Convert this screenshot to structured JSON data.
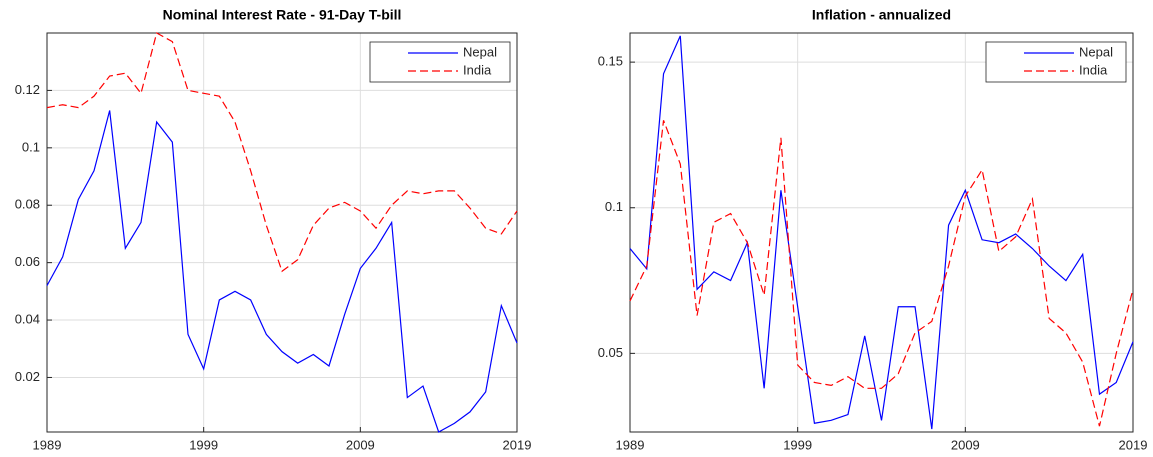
{
  "chart_data": [
    {
      "type": "line",
      "title": "Nominal Interest Rate - 91-Day T-bill",
      "x": [
        1989,
        1990,
        1991,
        1992,
        1993,
        1994,
        1995,
        1996,
        1997,
        1998,
        1999,
        2000,
        2001,
        2002,
        2003,
        2004,
        2005,
        2006,
        2007,
        2008,
        2009,
        2010,
        2011,
        2012,
        2013,
        2014,
        2015,
        2016,
        2017,
        2018,
        2019
      ],
      "series": [
        {
          "name": "Nepal",
          "color": "#0000ff",
          "line_style": "solid",
          "values": [
            0.052,
            0.062,
            0.082,
            0.092,
            0.113,
            0.065,
            0.074,
            0.109,
            0.102,
            0.035,
            0.023,
            0.047,
            0.05,
            0.047,
            0.035,
            0.029,
            0.025,
            0.028,
            0.024,
            0.042,
            0.058,
            0.065,
            0.074,
            0.013,
            0.017,
            0.001,
            0.004,
            0.008,
            0.015,
            0.045,
            0.032
          ]
        },
        {
          "name": "India",
          "color": "#ff0000",
          "line_style": "dashed",
          "values": [
            0.114,
            0.115,
            0.114,
            0.118,
            0.125,
            0.126,
            0.119,
            0.14,
            0.137,
            0.12,
            0.119,
            0.118,
            0.109,
            0.092,
            0.073,
            0.057,
            0.061,
            0.073,
            0.079,
            0.081,
            0.078,
            0.072,
            0.08,
            0.085,
            0.084,
            0.085,
            0.085,
            0.079,
            0.072,
            0.07,
            0.078
          ]
        }
      ],
      "xlim": [
        1989,
        2019
      ],
      "xticks": [
        1989,
        1999,
        2009,
        2019
      ],
      "ylim": [
        0.001,
        0.14
      ],
      "yticks": [
        0.02,
        0.04,
        0.06,
        0.08,
        0.1,
        0.12
      ],
      "grid": true,
      "legend": "top-right"
    },
    {
      "type": "line",
      "title": "Inflation - annualized",
      "x": [
        1989,
        1990,
        1991,
        1992,
        1993,
        1994,
        1995,
        1996,
        1997,
        1998,
        1999,
        2000,
        2001,
        2002,
        2003,
        2004,
        2005,
        2006,
        2007,
        2008,
        2009,
        2010,
        2011,
        2012,
        2013,
        2014,
        2015,
        2016,
        2017,
        2018,
        2019
      ],
      "series": [
        {
          "name": "Nepal",
          "color": "#0000ff",
          "line_style": "solid",
          "values": [
            0.086,
            0.079,
            0.146,
            0.159,
            0.072,
            0.078,
            0.075,
            0.088,
            0.038,
            0.106,
            0.066,
            0.026,
            0.027,
            0.029,
            0.056,
            0.027,
            0.066,
            0.066,
            0.024,
            0.094,
            0.106,
            0.089,
            0.088,
            0.091,
            0.086,
            0.08,
            0.075,
            0.084,
            0.036,
            0.04,
            0.054
          ]
        },
        {
          "name": "India",
          "color": "#ff0000",
          "line_style": "dashed",
          "values": [
            0.068,
            0.08,
            0.13,
            0.115,
            0.063,
            0.095,
            0.098,
            0.088,
            0.07,
            0.124,
            0.046,
            0.04,
            0.039,
            0.042,
            0.038,
            0.038,
            0.043,
            0.057,
            0.061,
            0.08,
            0.104,
            0.113,
            0.085,
            0.09,
            0.103,
            0.062,
            0.057,
            0.047,
            0.025,
            0.05,
            0.072
          ]
        }
      ],
      "xlim": [
        1989,
        2019
      ],
      "xticks": [
        1989,
        1999,
        2009,
        2019
      ],
      "ylim": [
        0.023,
        0.16
      ],
      "yticks": [
        0.05,
        0.1,
        0.15
      ],
      "grid": true,
      "legend": "top-right"
    }
  ]
}
